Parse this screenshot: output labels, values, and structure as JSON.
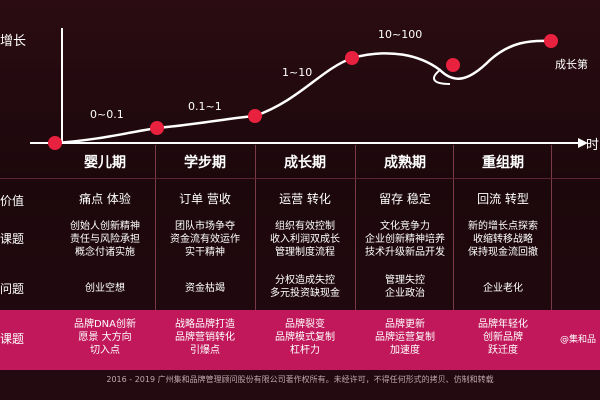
{
  "chart": {
    "y_axis_label": "增长",
    "x_axis_label": "时",
    "final_point_label": "成长第",
    "segment_labels": [
      "0~0.1",
      "0.1~1",
      "1~10",
      "10~100"
    ]
  },
  "stages": [
    "婴儿期",
    "学步期",
    "成长期",
    "成熟期",
    "重组期"
  ],
  "row_labels": [
    "价值",
    "课题",
    "问题",
    "课题"
  ],
  "value_row": [
    "痛点 体验",
    "订单 营收",
    "运营 转化",
    "留存 稳定",
    "回流 转型"
  ],
  "topic_row": [
    [
      "创始人创新精神",
      "责任与风险承担",
      "概念付诸实施"
    ],
    [
      "团队市场争夺",
      "资金流有效运作",
      "实干精神"
    ],
    [
      "组织有效控制",
      "收入利润双成长",
      "管理制度流程"
    ],
    [
      "文化竞争力",
      "企业创新精神培养",
      "技术升级新品开发"
    ],
    [
      "新的增长点探索",
      "收缩转移战略",
      "保持现金流回撤"
    ]
  ],
  "problem_row": [
    [
      "创业空想"
    ],
    [
      "资金枯竭"
    ],
    [
      "分权造成失控",
      "多元投资缺现金"
    ],
    [
      "管理失控",
      "企业政治"
    ],
    [
      "企业老化"
    ]
  ],
  "brand_row": [
    [
      "品牌DNA创新",
      "愿景 大方向",
      "切入点"
    ],
    [
      "战略品牌打造",
      "品牌营销转化",
      "引爆点"
    ],
    [
      "品牌裂变",
      "品牌模式复制",
      "杠杆力"
    ],
    [
      "品牌更新",
      "品牌运营复制",
      "加速度"
    ],
    [
      "品牌年轻化",
      "创新品牌",
      "跃迁度"
    ]
  ],
  "watermark": "@集和品",
  "footer": "2016 - 2019 广州集和品牌管理顾问股份有限公司著作权所有。未经许可，不得任何形式的拷贝、仿制和转载",
  "colors": {
    "background": "#1e0a0e",
    "curve": "#ffffff",
    "point": "#e8213f",
    "band": "#c0185a"
  }
}
